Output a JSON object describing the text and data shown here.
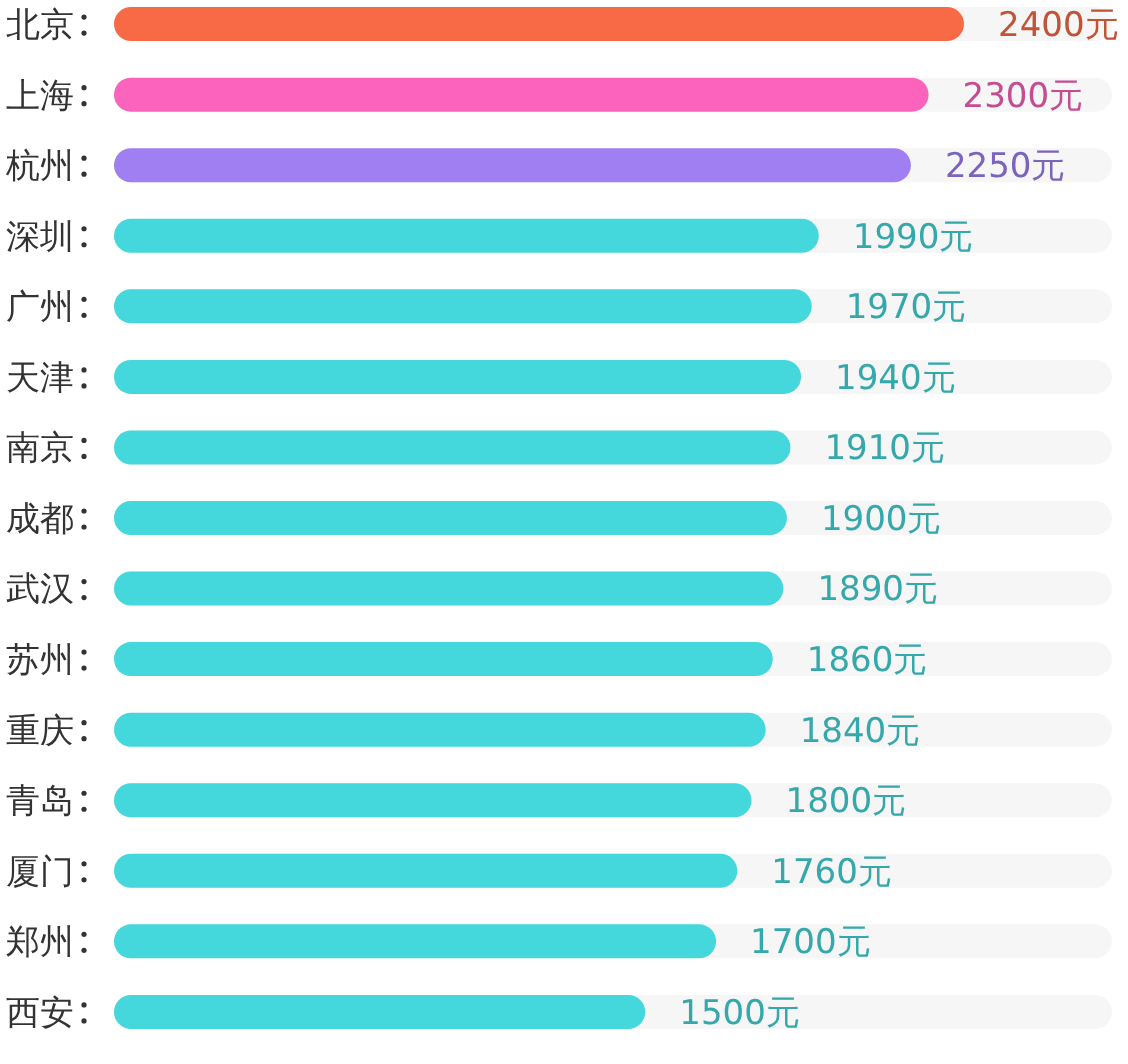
{
  "chart_data": {
    "type": "bar",
    "orientation": "horizontal",
    "categories": [
      "北京",
      "上海",
      "杭州",
      "深圳",
      "广州",
      "天津",
      "南京",
      "成都",
      "武汉",
      "苏州",
      "重庆",
      "青岛",
      "厦门",
      "郑州",
      "西安"
    ],
    "values": [
      2400,
      2300,
      2250,
      1990,
      1970,
      1940,
      1910,
      1900,
      1890,
      1860,
      1840,
      1800,
      1760,
      1700,
      1500
    ],
    "value_labels": [
      "2400元",
      "2300元",
      "2250元",
      "1990元",
      "1970元",
      "1940元",
      "1910元",
      "1900元",
      "1890元",
      "1860元",
      "1840元",
      "1800元",
      "1760元",
      "1700元",
      "1500元"
    ],
    "colors": [
      "#f86a45",
      "#fb63bc",
      "#9f7ff2",
      "#44d8dc",
      "#44d8dc",
      "#44d8dc",
      "#44d8dc",
      "#44d8dc",
      "#44d8dc",
      "#44d8dc",
      "#44d8dc",
      "#44d8dc",
      "#44d8dc",
      "#44d8dc",
      "#44d8dc"
    ]
  }
}
